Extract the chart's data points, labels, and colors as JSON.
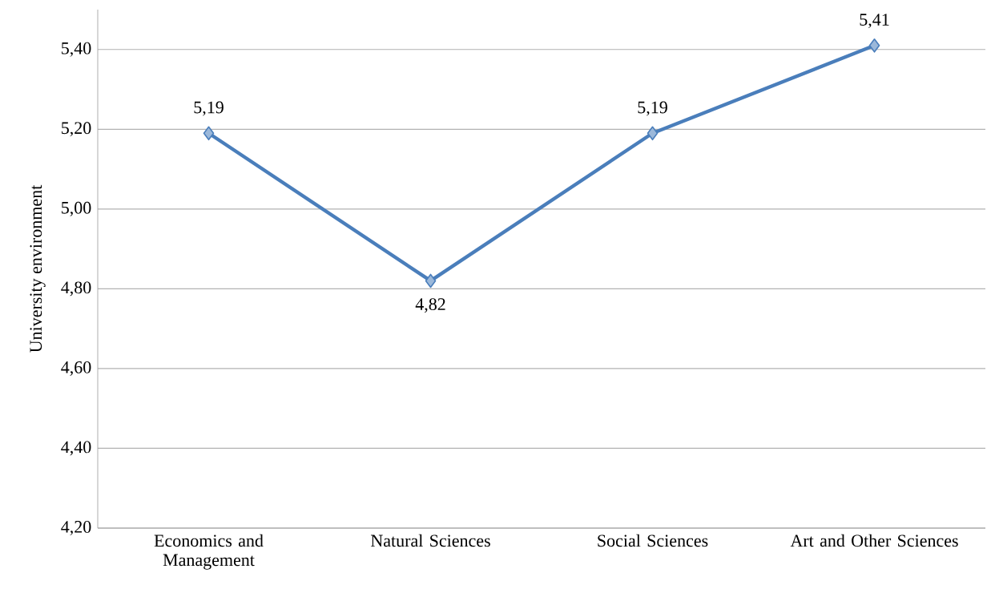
{
  "chart_data": {
    "type": "line",
    "ylabel": "University environment",
    "categories": [
      "Economics and Management",
      "Natural Sciences",
      "Social Sciences",
      "Art and Other Sciences"
    ],
    "series": [
      {
        "color": "#4a7ebb",
        "values": [
          5.19,
          4.82,
          5.19,
          5.41
        ],
        "value_labels": [
          "5,19",
          "4,82",
          "5,19",
          "5,41"
        ]
      }
    ],
    "ylim": [
      4.2,
      5.5
    ],
    "yticks": [
      {
        "value": 4.2,
        "label": "4,20"
      },
      {
        "value": 4.4,
        "label": "4,40"
      },
      {
        "value": 4.6,
        "label": "4,60"
      },
      {
        "value": 4.8,
        "label": "4,80"
      },
      {
        "value": 5.0,
        "label": "5,00"
      },
      {
        "value": 5.2,
        "label": "5,20"
      },
      {
        "value": 5.4,
        "label": "5,40"
      }
    ],
    "grid": "y",
    "marker": "diamond",
    "line_style": "solid"
  }
}
